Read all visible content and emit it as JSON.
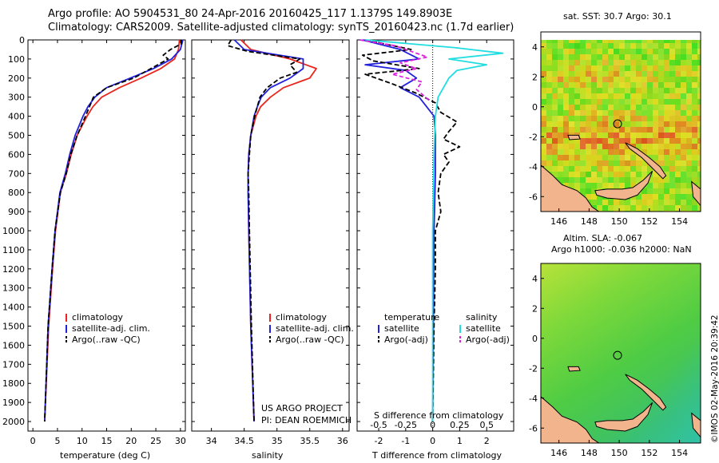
{
  "header": {
    "line1": "Argo profile: AO 5904531_80 24-Apr-2016 20160425_117 1.1379S 149.8903E",
    "line2": "Climatology: CARS2009. Satellite-adjusted climatology: synTS_20160423.nc (1.7d earlier)"
  },
  "colors": {
    "climatology": "#e8261e",
    "satellite": "#2222dd",
    "argo": "#000000",
    "cyan": "#22dde0",
    "magenta": "#dd22dd",
    "land": "#f2b48c"
  },
  "chart_data": [
    {
      "type": "line",
      "id": "temperature",
      "xlabel": "temperature (deg C)",
      "ylabel": "",
      "xlim": [
        -1,
        31
      ],
      "ylim": [
        2050,
        0
      ],
      "xticks": [
        0,
        5,
        10,
        15,
        20,
        25,
        30
      ],
      "yticks": [
        0,
        100,
        200,
        300,
        400,
        500,
        600,
        700,
        800,
        900,
        1000,
        1100,
        1200,
        1300,
        1400,
        1500,
        1600,
        1700,
        1800,
        1900,
        2000
      ],
      "legend": [
        "climatology",
        "satellite-adj. clim.",
        "Argo(..raw -QC)"
      ],
      "series": [
        {
          "name": "climatology",
          "depth": [
            0,
            50,
            100,
            150,
            200,
            250,
            300,
            350,
            400,
            500,
            600,
            700,
            800,
            1000,
            1200,
            1500,
            2000
          ],
          "values": [
            29.8,
            29.6,
            28.8,
            26,
            22,
            17.6,
            14,
            12.2,
            11,
            9,
            7.8,
            6.8,
            5.6,
            4.6,
            4,
            3.2,
            2.4
          ]
        },
        {
          "name": "satellite-adj. clim.",
          "depth": [
            0,
            50,
            100,
            150,
            200,
            250,
            300,
            350,
            400,
            500,
            600,
            700,
            800,
            1000,
            1200,
            1500,
            2000
          ],
          "values": [
            30.5,
            30,
            28.2,
            24.5,
            19.8,
            15,
            12.6,
            11.2,
            10.2,
            8.6,
            7.5,
            6.6,
            5.5,
            4.5,
            3.9,
            3.1,
            2.4
          ]
        },
        {
          "name": "Argo(..raw -QC)",
          "depth": [
            0,
            20,
            50,
            80,
            100,
            150,
            200,
            250,
            300,
            350,
            400,
            500,
            600,
            700,
            800,
            1000,
            1200,
            1500,
            2000
          ],
          "values": [
            30.2,
            30.2,
            28,
            26.5,
            27.5,
            24,
            20.5,
            15,
            12.3,
            11.5,
            10.7,
            9,
            7.7,
            6.8,
            5.6,
            4.5,
            3.9,
            3.1,
            2.4
          ]
        }
      ]
    },
    {
      "type": "line",
      "id": "salinity",
      "xlabel": "salinity",
      "ylabel": "",
      "xlim": [
        33.7,
        36.1
      ],
      "ylim": [
        2050,
        0
      ],
      "xticks": [
        34,
        34.5,
        35,
        35.5,
        36
      ],
      "legend": [
        "climatology",
        "satellite-adj. clim.",
        "Argo(..raw -QC)"
      ],
      "series": [
        {
          "name": "climatology",
          "depth": [
            0,
            50,
            100,
            150,
            200,
            250,
            300,
            350,
            400,
            500,
            600,
            700,
            800,
            1000,
            1500,
            2000
          ],
          "values": [
            34.45,
            34.6,
            35.2,
            35.6,
            35.5,
            35.1,
            34.9,
            34.75,
            34.68,
            34.6,
            34.57,
            34.56,
            34.56,
            34.57,
            34.6,
            34.65
          ]
        },
        {
          "name": "satellite-adj. clim.",
          "depth": [
            0,
            50,
            100,
            150,
            200,
            250,
            300,
            350,
            400,
            500,
            600,
            700,
            800,
            1000,
            1500,
            2000
          ],
          "values": [
            34.35,
            34.5,
            35.4,
            35.4,
            35.2,
            34.9,
            34.76,
            34.7,
            34.65,
            34.6,
            34.57,
            34.56,
            34.56,
            34.57,
            34.6,
            34.65
          ]
        },
        {
          "name": "Argo(..raw -QC)",
          "depth": [
            0,
            30,
            60,
            100,
            130,
            170,
            200,
            250,
            300,
            350,
            400,
            500,
            600,
            700,
            800,
            1000,
            1500,
            2000
          ],
          "values": [
            34.3,
            34.25,
            34.55,
            35.35,
            35.2,
            35.3,
            35.05,
            34.85,
            34.74,
            34.7,
            34.66,
            34.6,
            34.58,
            34.56,
            34.57,
            34.58,
            34.61,
            34.65
          ]
        }
      ]
    },
    {
      "type": "line",
      "id": "difference",
      "xlabel": "T difference from climatology",
      "xlabel2": "S difference from climatology",
      "xlim": [
        -2.8,
        3
      ],
      "xticks": [
        -2,
        -1,
        0,
        1,
        2
      ],
      "xticks2": [
        -0.5,
        -0.25,
        0,
        0.25,
        0.5
      ],
      "xticks2_labels": [
        "-0.5",
        "-0.25",
        "0",
        "0.25",
        "0.5"
      ],
      "ylim": [
        2050,
        0
      ],
      "legend": {
        "temperature_header": "temperature",
        "salinity_header": "salinity",
        "entries": [
          "satellite",
          "Argo(-adj)",
          "satellite",
          "Argo(-adj)"
        ]
      },
      "series": [
        {
          "name": "temperature satellite",
          "depth": [
            0,
            50,
            100,
            130,
            160,
            200,
            250,
            300,
            400,
            500,
            700,
            1000,
            2000
          ],
          "values": [
            -2.6,
            -1.2,
            -0.5,
            -2.5,
            -1,
            -0.6,
            -1.2,
            -0.5,
            0.05,
            0.1,
            0.1,
            0.05,
            0
          ]
        },
        {
          "name": "temperature Argo(-adj)",
          "depth": [
            0,
            50,
            80,
            110,
            150,
            180,
            230,
            280,
            330,
            380,
            430,
            480,
            520,
            560,
            600,
            640,
            700,
            800,
            900,
            1000,
            1200,
            1500,
            2000
          ],
          "values": [
            -2.5,
            -0.8,
            -2.6,
            -2.2,
            -0.5,
            -2.5,
            -1.5,
            -0.6,
            0.1,
            0.3,
            0.9,
            0.6,
            0.4,
            1,
            0.4,
            0.6,
            0.3,
            0.2,
            0.3,
            0.1,
            0.1,
            0.05,
            0
          ]
        },
        {
          "name": "salinity satellite",
          "depth": [
            0,
            40,
            70,
            100,
            130,
            160,
            200,
            300,
            400,
            600,
            1000,
            2000
          ],
          "values": [
            -2.5,
            0.8,
            2.6,
            0.6,
            2,
            0.9,
            0.6,
            0.2,
            0.1,
            0.05,
            0,
            0
          ]
        },
        {
          "name": "salinity Argo(-adj)",
          "depth": [
            0,
            30,
            60,
            90,
            120,
            150,
            180,
            220,
            260,
            320
          ],
          "values": [
            -2.7,
            -1.4,
            -0.8,
            -0.2,
            -1.2,
            -0.6,
            -1.5,
            -0.4,
            -0.6,
            -0.1
          ]
        }
      ]
    },
    {
      "type": "heatmap",
      "id": "sst-map",
      "title": "sat. SST: 30.7  Argo: 30.1",
      "xlim": [
        144.8,
        155.4
      ],
      "ylim": [
        -7,
        5
      ],
      "xticks": [
        146,
        148,
        150,
        152,
        154
      ],
      "yticks": [
        4,
        2,
        0,
        -2,
        -4,
        -6
      ],
      "marker": {
        "lon": 149.89,
        "lat": -1.14
      }
    },
    {
      "type": "heatmap",
      "id": "sla-map",
      "title": "Altim. SLA: -0.067",
      "subtitle": "Argo h1000: -0.036 h2000: NaN",
      "xlim": [
        144.8,
        155.4
      ],
      "ylim": [
        -7,
        5
      ],
      "xticks": [
        146,
        148,
        150,
        152,
        154
      ],
      "yticks": [
        4,
        2,
        0,
        -2,
        -4,
        -6
      ],
      "marker": {
        "lon": 149.89,
        "lat": -1.14
      }
    }
  ],
  "annotations": {
    "project": "US ARGO PROJECT",
    "pi": "PI: DEAN ROEMMICH",
    "stamp": "©IMOS 02-May-2016 20:39:42"
  }
}
